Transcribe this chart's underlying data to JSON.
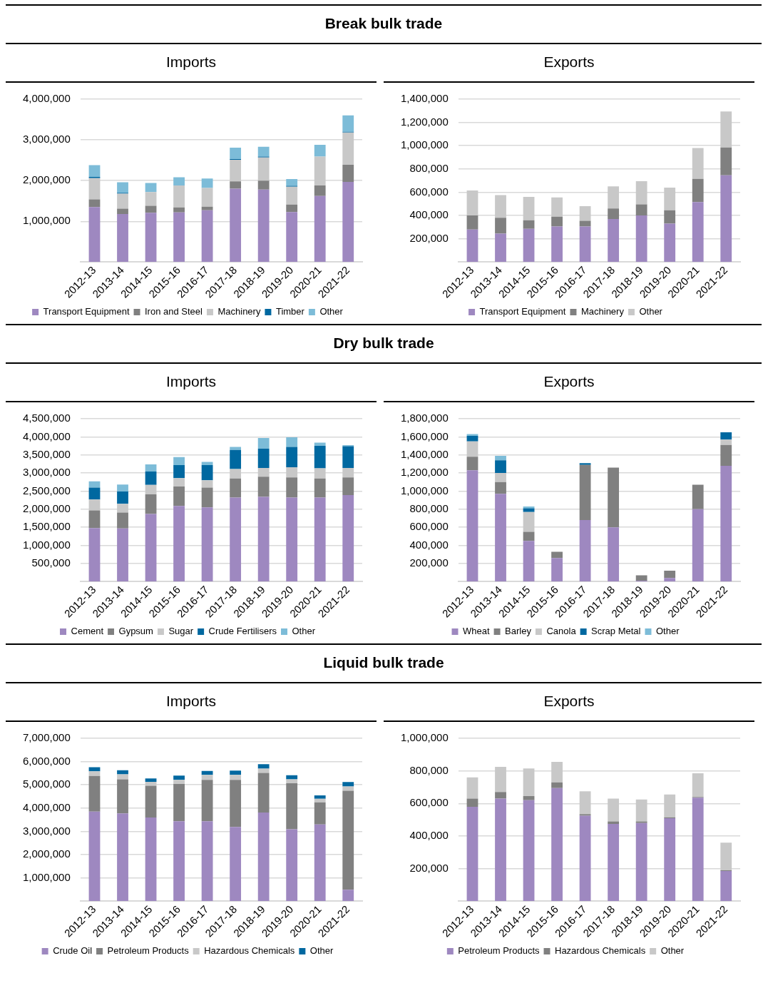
{
  "chart_data": [
    {
      "type": "bar",
      "title": "Break bulk trade",
      "subtitle": "Imports",
      "categories": [
        "2012-13",
        "2013-14",
        "2014-15",
        "2015-16",
        "2016-17",
        "2017-18",
        "2018-19",
        "2019-20",
        "2020-21",
        "2021-22"
      ],
      "stacked": true,
      "grid": "y",
      "legend": "bottom",
      "ylim": [
        0,
        4000000
      ],
      "yticks": [
        {
          "value": 1000000,
          "label": "1,000,000"
        },
        {
          "value": 2000000,
          "label": "2,000,000"
        },
        {
          "value": 3000000,
          "label": "3,000,000"
        },
        {
          "value": 4000000,
          "label": "4,000,000"
        }
      ],
      "series": [
        {
          "name": "Transport Equipment",
          "color": "#9e88c0",
          "values": [
            1350000,
            1180000,
            1210000,
            1220000,
            1270000,
            1800000,
            1780000,
            1230000,
            1620000,
            1970000
          ]
        },
        {
          "name": "Iron and Steel",
          "color": "#808080",
          "values": [
            190000,
            130000,
            170000,
            120000,
            90000,
            180000,
            220000,
            180000,
            260000,
            420000
          ]
        },
        {
          "name": "Machinery",
          "color": "#c8c8c8",
          "values": [
            520000,
            370000,
            340000,
            540000,
            460000,
            530000,
            570000,
            440000,
            710000,
            790000
          ]
        },
        {
          "name": "Timber",
          "color": "#0068a0",
          "values": [
            30000,
            20000,
            0,
            0,
            0,
            20000,
            20000,
            20000,
            0,
            20000
          ]
        },
        {
          "name": "Other",
          "color": "#7dbcd8",
          "values": [
            290000,
            260000,
            220000,
            200000,
            230000,
            280000,
            240000,
            170000,
            290000,
            400000
          ]
        }
      ]
    },
    {
      "type": "bar",
      "title": "Exports",
      "categories": [
        "2012-13",
        "2013-14",
        "2014-15",
        "2015-16",
        "2016-17",
        "2017-18",
        "2018-19",
        "2019-20",
        "2020-21",
        "2021-22"
      ],
      "stacked": true,
      "grid": "y",
      "legend": "bottom",
      "ylim": [
        0,
        1400000
      ],
      "yticks": [
        {
          "value": 200000,
          "label": "200,000"
        },
        {
          "value": 400000,
          "label": "400,000"
        },
        {
          "value": 600000,
          "label": "600,000"
        },
        {
          "value": 800000,
          "label": "800,000"
        },
        {
          "value": 1000000,
          "label": "1,000,000"
        },
        {
          "value": 1200000,
          "label": "1,200,000"
        },
        {
          "value": 1400000,
          "label": "1,400,000"
        }
      ],
      "series": [
        {
          "name": "Transport Equipment",
          "color": "#9e88c0",
          "values": [
            280000,
            245000,
            285000,
            305000,
            305000,
            370000,
            400000,
            330000,
            515000,
            745000
          ]
        },
        {
          "name": "Machinery",
          "color": "#808080",
          "values": [
            120000,
            135000,
            75000,
            85000,
            50000,
            90000,
            95000,
            115000,
            200000,
            240000
          ]
        },
        {
          "name": "Other",
          "color": "#c8c8c8",
          "values": [
            215000,
            195000,
            200000,
            165000,
            125000,
            190000,
            200000,
            195000,
            265000,
            310000
          ]
        }
      ]
    },
    {
      "type": "bar",
      "title": "Dry bulk trade",
      "subtitle": "Imports",
      "categories": [
        "2012-13",
        "2013-14",
        "2014-15",
        "2015-16",
        "2016-17",
        "2017-18",
        "2018-19",
        "2019-20",
        "2020-21",
        "2021-22"
      ],
      "stacked": true,
      "grid": "y",
      "legend": "bottom",
      "ylim": [
        0,
        4500000
      ],
      "yticks": [
        {
          "value": 500000,
          "label": "500,000"
        },
        {
          "value": 1000000,
          "label": "1,000,000"
        },
        {
          "value": 1500000,
          "label": "1,500,000"
        },
        {
          "value": 2000000,
          "label": "2,000,000"
        },
        {
          "value": 2500000,
          "label": "2,500,000"
        },
        {
          "value": 3000000,
          "label": "3,000,000"
        },
        {
          "value": 3500000,
          "label": "3,500,000"
        },
        {
          "value": 4000000,
          "label": "4,000,000"
        },
        {
          "value": 4500000,
          "label": "4,500,000"
        }
      ],
      "series": [
        {
          "name": "Cement",
          "color": "#9e88c0",
          "values": [
            1480000,
            1470000,
            1870000,
            2090000,
            2050000,
            2320000,
            2340000,
            2320000,
            2320000,
            2390000
          ]
        },
        {
          "name": "Gypsum",
          "color": "#808080",
          "values": [
            490000,
            440000,
            540000,
            540000,
            550000,
            530000,
            560000,
            560000,
            530000,
            490000
          ]
        },
        {
          "name": "Sugar",
          "color": "#c8c8c8",
          "values": [
            300000,
            240000,
            260000,
            230000,
            200000,
            260000,
            240000,
            280000,
            280000,
            260000
          ]
        },
        {
          "name": "Crude Fertilisers",
          "color": "#0068a0",
          "values": [
            330000,
            340000,
            370000,
            360000,
            420000,
            530000,
            530000,
            560000,
            620000,
            600000
          ]
        },
        {
          "name": "Other",
          "color": "#7dbcd8",
          "values": [
            170000,
            190000,
            200000,
            220000,
            90000,
            80000,
            300000,
            270000,
            90000,
            30000
          ]
        }
      ]
    },
    {
      "type": "bar",
      "title": "Exports",
      "categories": [
        "2012-13",
        "2013-14",
        "2014-15",
        "2015-16",
        "2016-17",
        "2017-18",
        "2018-19",
        "2019-20",
        "2020-21",
        "2021-22"
      ],
      "stacked": true,
      "grid": "y",
      "legend": "bottom",
      "ylim": [
        0,
        1800000
      ],
      "yticks": [
        {
          "value": 200000,
          "label": "200,000"
        },
        {
          "value": 400000,
          "label": "400,000"
        },
        {
          "value": 600000,
          "label": "600,000"
        },
        {
          "value": 800000,
          "label": "800,000"
        },
        {
          "value": 1000000,
          "label": "1,000,000"
        },
        {
          "value": 1200000,
          "label": "1,200,000"
        },
        {
          "value": 1400000,
          "label": "1,400,000"
        },
        {
          "value": 1600000,
          "label": "1,600,000"
        },
        {
          "value": 1800000,
          "label": "1,800,000"
        }
      ],
      "series": [
        {
          "name": "Wheat",
          "color": "#9e88c0",
          "values": [
            1230000,
            970000,
            450000,
            260000,
            680000,
            600000,
            10000,
            40000,
            800000,
            1280000
          ]
        },
        {
          "name": "Barley",
          "color": "#808080",
          "values": [
            150000,
            130000,
            100000,
            70000,
            610000,
            660000,
            60000,
            80000,
            270000,
            230000
          ]
        },
        {
          "name": "Canola",
          "color": "#c8c8c8",
          "values": [
            170000,
            100000,
            220000,
            0,
            0,
            0,
            0,
            0,
            0,
            60000
          ]
        },
        {
          "name": "Scrap Metal",
          "color": "#0068a0",
          "values": [
            60000,
            140000,
            40000,
            0,
            20000,
            0,
            0,
            0,
            0,
            80000
          ]
        },
        {
          "name": "Other",
          "color": "#7dbcd8",
          "values": [
            20000,
            50000,
            20000,
            0,
            0,
            0,
            0,
            0,
            0,
            0
          ]
        }
      ]
    },
    {
      "type": "bar",
      "title": "Liquid bulk trade",
      "subtitle": "Imports",
      "categories": [
        "2012-13",
        "2013-14",
        "2014-15",
        "2015-16",
        "2016-17",
        "2017-18",
        "2018-19",
        "2019-20",
        "2020-21",
        "2021-22"
      ],
      "stacked": true,
      "grid": "y",
      "legend": "bottom",
      "ylim": [
        0,
        7000000
      ],
      "yticks": [
        {
          "value": 1000000,
          "label": "1,000,000"
        },
        {
          "value": 2000000,
          "label": "2,000,000"
        },
        {
          "value": 3000000,
          "label": "3,000,000"
        },
        {
          "value": 4000000,
          "label": "4,000,000"
        },
        {
          "value": 5000000,
          "label": "5,000,000"
        },
        {
          "value": 6000000,
          "label": "6,000,000"
        },
        {
          "value": 7000000,
          "label": "7,000,000"
        }
      ],
      "series": [
        {
          "name": "Crude Oil",
          "color": "#9e88c0",
          "values": [
            3850000,
            3770000,
            3600000,
            3440000,
            3440000,
            3190000,
            3810000,
            3095000,
            3300000,
            490000
          ]
        },
        {
          "name": "Petroleum Products",
          "color": "#808080",
          "values": [
            1530000,
            1465000,
            1365000,
            1595000,
            1775000,
            2025000,
            1700000,
            1975000,
            950000,
            4260000
          ]
        },
        {
          "name": "Hazardous Chemicals",
          "color": "#c8c8c8",
          "values": [
            200000,
            215000,
            165000,
            180000,
            215000,
            215000,
            190000,
            165000,
            155000,
            180000
          ]
        },
        {
          "name": "Other",
          "color": "#0068a0",
          "values": [
            180000,
            180000,
            145000,
            180000,
            165000,
            180000,
            190000,
            180000,
            145000,
            190000
          ]
        }
      ]
    },
    {
      "type": "bar",
      "title": "Exports",
      "categories": [
        "2012-13",
        "2013-14",
        "2014-15",
        "2015-16",
        "2016-17",
        "2017-18",
        "2018-19",
        "2019-20",
        "2020-21",
        "2021-22"
      ],
      "stacked": true,
      "grid": "y",
      "legend": "bottom",
      "ylim": [
        0,
        1000000
      ],
      "yticks": [
        {
          "value": 200000,
          "label": "200,000"
        },
        {
          "value": 400000,
          "label": "400,000"
        },
        {
          "value": 600000,
          "label": "600,000"
        },
        {
          "value": 800000,
          "label": "800,000"
        },
        {
          "value": 1000000,
          "label": "1,000,000"
        }
      ],
      "series": [
        {
          "name": "Petroleum Products",
          "color": "#9e88c0",
          "values": [
            580000,
            630000,
            620000,
            695000,
            525000,
            475000,
            480000,
            510000,
            635000,
            185000
          ]
        },
        {
          "name": "Hazardous Chemicals",
          "color": "#808080",
          "values": [
            50000,
            40000,
            25000,
            35000,
            10000,
            15000,
            10000,
            5000,
            5000,
            5000
          ]
        },
        {
          "name": "Other",
          "color": "#c8c8c8",
          "values": [
            130000,
            155000,
            170000,
            125000,
            140000,
            140000,
            135000,
            140000,
            145000,
            170000
          ]
        }
      ]
    }
  ]
}
